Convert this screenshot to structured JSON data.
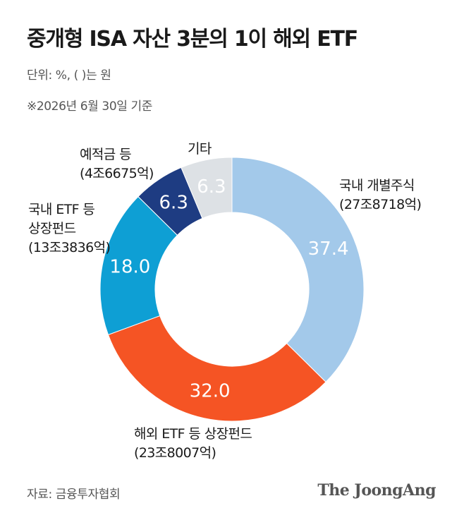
{
  "header": {
    "title": "중개형 ISA 자산 3분의 1이 해외 ETF",
    "unit": "단위: %, ( )는 원",
    "note": "※2026년 6월 30일 기준"
  },
  "chart_data": {
    "type": "pie",
    "variant": "donut",
    "slices": [
      {
        "name": "국내 개별주식",
        "amount": "(27조8718억)",
        "value": 37.4,
        "value_label": "37.4",
        "color": "#a3c9ea"
      },
      {
        "name": "해외 ETF 등 상장펀드",
        "amount": "(23조8007억)",
        "value": 32.0,
        "value_label": "32.0",
        "color": "#f55424"
      },
      {
        "name": "국내 ETF 등 상장펀드",
        "amount": "(13조3836억)",
        "value": 18.0,
        "value_label": "18.0",
        "color": "#0e9fd4"
      },
      {
        "name": "예적금 등",
        "amount": "(4조6675억)",
        "value": 6.3,
        "value_label": "6.3",
        "color": "#1e3c82"
      },
      {
        "name": "기타",
        "amount": "",
        "value": 6.3,
        "value_label": "6.3",
        "color": "#dde1e5"
      }
    ]
  },
  "footer": {
    "source": "자료: 금융투자협회",
    "brand": "The JoongAng"
  }
}
